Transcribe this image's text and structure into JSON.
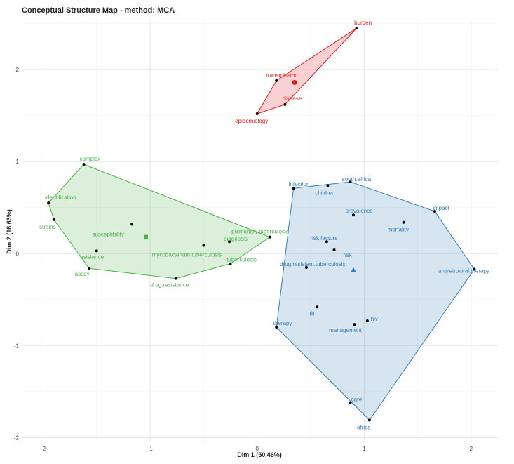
{
  "chart_data": {
    "type": "scatter",
    "title": "Conceptual Structure Map - method: MCA",
    "xlabel": "Dim 1 (50.46%)",
    "ylabel": "Dim 2 (16.63%)",
    "xlim": [
      -2.2,
      2.25
    ],
    "ylim": [
      -2.05,
      2.55
    ],
    "xticks": [
      -2,
      -1,
      0,
      1,
      2
    ],
    "yticks": [
      -2,
      -1,
      0,
      1,
      2
    ],
    "grid": true,
    "clusters": [
      {
        "color": "#e41a1c",
        "centroid_marker": "circle",
        "centroid": [
          0.35,
          1.86
        ],
        "hull": [
          [
            0.0,
            1.52
          ],
          [
            0.26,
            1.62
          ],
          [
            0.93,
            2.45
          ],
          [
            0.18,
            1.88
          ]
        ],
        "points": [
          {
            "label": "burden",
            "x": 0.93,
            "y": 2.45
          },
          {
            "label": "transmission",
            "x": 0.18,
            "y": 1.88
          },
          {
            "label": "disease",
            "x": 0.26,
            "y": 1.62
          },
          {
            "label": "epidemiology",
            "x": 0.0,
            "y": 1.52
          }
        ]
      },
      {
        "color": "#4daf4a",
        "centroid_marker": "square",
        "centroid": [
          -1.04,
          0.18
        ],
        "hull": [
          [
            -1.62,
            0.97
          ],
          [
            -1.95,
            0.55
          ],
          [
            -1.9,
            0.37
          ],
          [
            -1.57,
            -0.16
          ],
          [
            -0.76,
            -0.27
          ],
          [
            -0.25,
            -0.11
          ],
          [
            0.12,
            0.18
          ]
        ],
        "points": [
          {
            "label": "complex",
            "x": -1.62,
            "y": 0.97
          },
          {
            "label": "identification",
            "x": -1.95,
            "y": 0.55
          },
          {
            "label": "strains",
            "x": -1.9,
            "y": 0.37
          },
          {
            "label": "susceptibility",
            "x": -1.17,
            "y": 0.32
          },
          {
            "label": "resistance",
            "x": -1.5,
            "y": 0.03
          },
          {
            "label": "assay",
            "x": -1.57,
            "y": -0.16
          },
          {
            "label": "drug.resistance",
            "x": -0.76,
            "y": -0.27
          },
          {
            "label": "mycobacterium.tuberculosis",
            "x": -0.5,
            "y": 0.09
          },
          {
            "label": "diagnosis",
            "x": -0.26,
            "y": 0.13
          },
          {
            "label": "tuberculosis",
            "x": -0.25,
            "y": -0.11
          },
          {
            "label": "pulmonary.tuberculosis",
            "x": 0.12,
            "y": 0.18
          }
        ]
      },
      {
        "color": "#377eb8",
        "centroid_marker": "triangle",
        "centroid": [
          0.9,
          -0.18
        ],
        "hull": [
          [
            0.34,
            0.71
          ],
          [
            0.87,
            0.78
          ],
          [
            1.66,
            0.46
          ],
          [
            2.03,
            -0.17
          ],
          [
            1.05,
            -1.81
          ],
          [
            0.18,
            -0.8
          ]
        ],
        "points": [
          {
            "label": "infection",
            "x": 0.34,
            "y": 0.71
          },
          {
            "label": "children",
            "x": 0.66,
            "y": 0.74
          },
          {
            "label": "south.africa",
            "x": 0.87,
            "y": 0.78
          },
          {
            "label": "impact",
            "x": 1.66,
            "y": 0.46
          },
          {
            "label": "prevalence",
            "x": 0.9,
            "y": 0.42
          },
          {
            "label": "mortality",
            "x": 1.37,
            "y": 0.34
          },
          {
            "label": "risk.factors",
            "x": 0.65,
            "y": 0.13
          },
          {
            "label": "risk",
            "x": 0.72,
            "y": 0.04
          },
          {
            "label": "drug.resistant.tuberculosis",
            "x": 0.46,
            "y": -0.15
          },
          {
            "label": "antiretroviral.therapy",
            "x": 2.03,
            "y": -0.17
          },
          {
            "label": "tb",
            "x": 0.56,
            "y": -0.58
          },
          {
            "label": "hiv",
            "x": 1.03,
            "y": -0.73
          },
          {
            "label": "management",
            "x": 0.91,
            "y": -0.77
          },
          {
            "label": "therapy",
            "x": 0.18,
            "y": -0.8
          },
          {
            "label": "care",
            "x": 0.87,
            "y": -1.62
          },
          {
            "label": "africa",
            "x": 1.05,
            "y": -1.81
          }
        ]
      }
    ]
  }
}
